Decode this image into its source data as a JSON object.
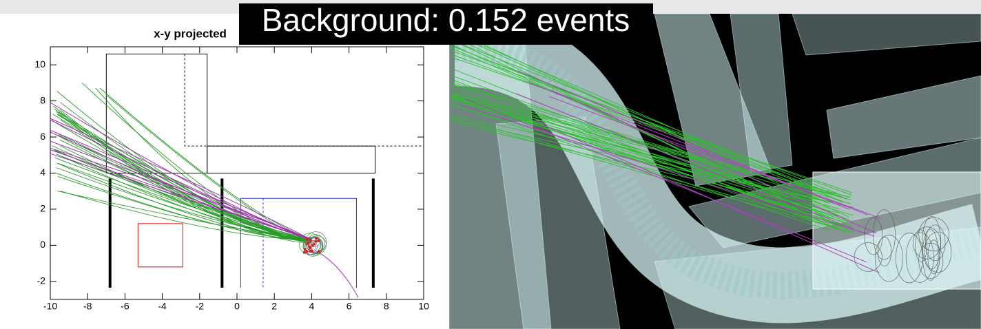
{
  "banner": "Background: 0.152 events",
  "plot": {
    "title": "x-y projected",
    "xlim": [
      -10,
      10
    ],
    "ylim": [
      -3,
      11
    ],
    "xticks": [
      -10,
      -8,
      -6,
      -4,
      -2,
      0,
      2,
      4,
      6,
      8,
      10
    ],
    "yticks": [
      -2,
      0,
      2,
      4,
      6,
      8,
      10
    ]
  }
}
